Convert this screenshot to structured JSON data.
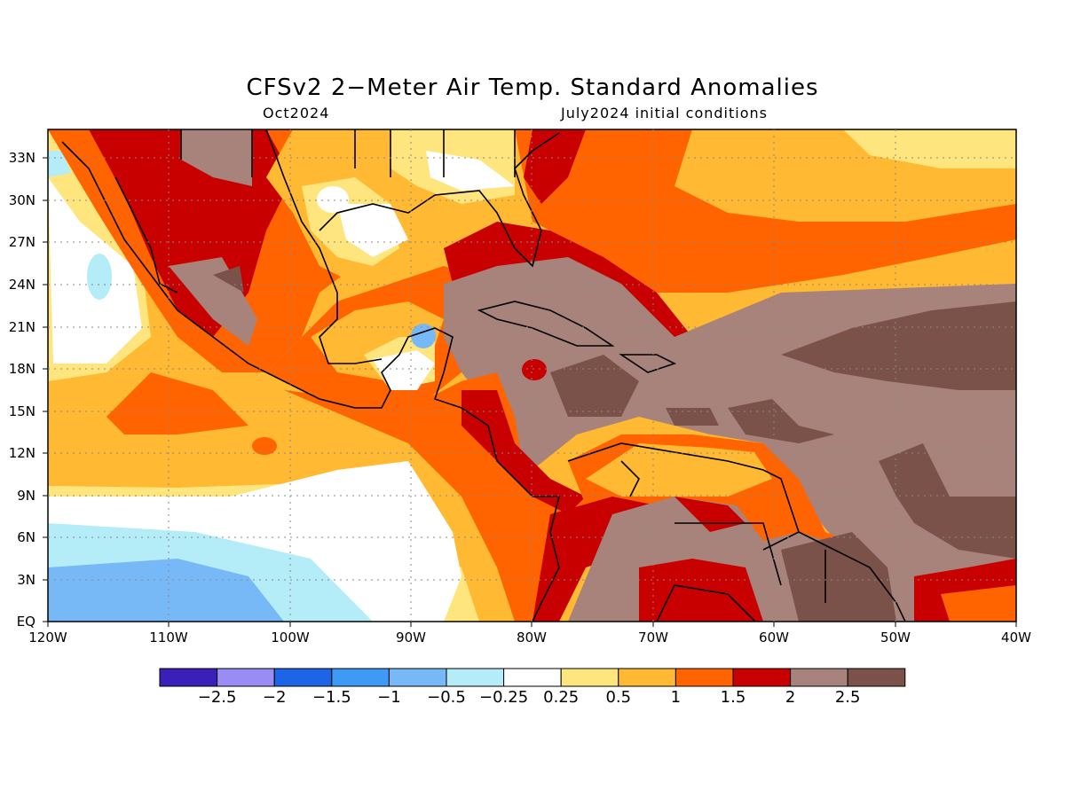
{
  "map": {
    "title": "CFSv2 2−Meter Air Temp. Standard Anomalies",
    "subtitle_left": "Oct2024",
    "subtitle_right": "July2024 initial conditions",
    "lat_labels": [
      "33N",
      "30N",
      "27N",
      "24N",
      "21N",
      "18N",
      "15N",
      "12N",
      "9N",
      "6N",
      "3N",
      "EQ"
    ],
    "lon_labels": [
      "120W",
      "110W",
      "100W",
      "90W",
      "80W",
      "70W",
      "60W",
      "50W",
      "40W"
    ],
    "extent": {
      "lon_min": -120,
      "lon_max": -40,
      "lat_min": 0,
      "lat_max": 35
    },
    "grid": true
  },
  "colorbar": {
    "colors": [
      "#3a1fb8",
      "#9a8cf5",
      "#1e64e6",
      "#3f9af5",
      "#77b8f6",
      "#b4ecf8",
      "#ffffff",
      "#ffe57e",
      "#ffb932",
      "#ff6400",
      "#c80000",
      "#a7837b",
      "#7a524a"
    ],
    "labels": [
      "−2.5",
      "−2",
      "−1.5",
      "−1",
      "−0.5",
      "−0.25",
      "0.25",
      "0.5",
      "1",
      "1.5",
      "2",
      "2.5"
    ]
  }
}
